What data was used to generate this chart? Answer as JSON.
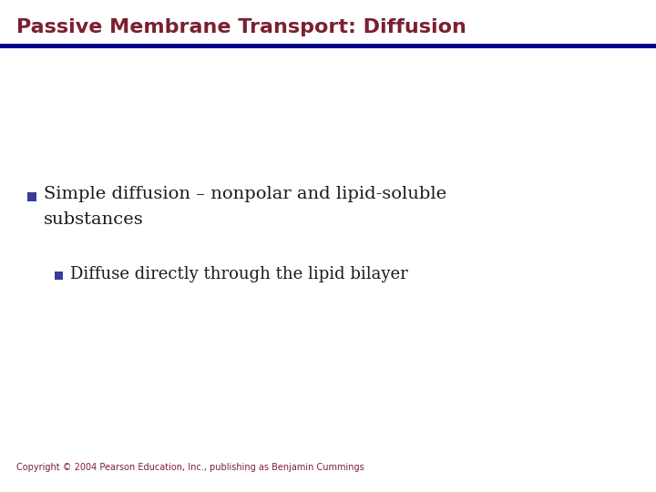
{
  "title": "Passive Membrane Transport: Diffusion",
  "title_color": "#7B2030",
  "separator_color": "#00008B",
  "bg_color": "#FFFFFF",
  "bullet1_text_line1": "Simple diffusion – nonpolar and lipid-soluble",
  "bullet1_text_line2": "substances",
  "bullet2_text": "Diffuse directly through the lipid bilayer",
  "bullet_color": "#3A3A9A",
  "body_text_color": "#1a1a1a",
  "copyright": "Copyright © 2004 Pearson Education, Inc., publishing as Benjamin Cummings",
  "copyright_color": "#7B2030",
  "title_fontsize": 16,
  "body_fontsize": 14,
  "sub_fontsize": 13,
  "copyright_fontsize": 7
}
